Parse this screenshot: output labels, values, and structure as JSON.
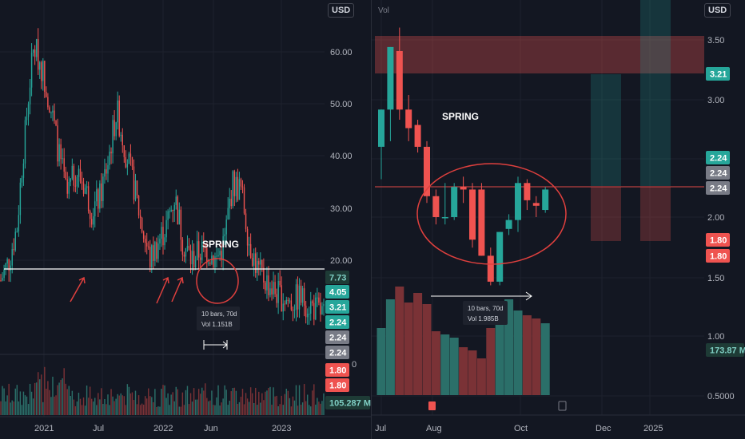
{
  "colors": {
    "background": "#131722",
    "up": "#26a69a",
    "down": "#ef5350",
    "up_vol": "#2b6f69",
    "down_vol": "#7a3236",
    "grid": "#1e222d",
    "annotation": "#e0403e",
    "axis_text": "#b2b5be"
  },
  "left": {
    "currency_label": "USD",
    "annotation_text": "SPRING",
    "measure_bars": "10 bars, 70d",
    "measure_vol": "Vol 1.151B",
    "price_badges": [
      {
        "text": "7.73",
        "kind": "up-dark"
      },
      {
        "text": "4.05",
        "kind": "up"
      },
      {
        "text": "3.21",
        "kind": "up"
      },
      {
        "text": "2.24",
        "kind": "up"
      },
      {
        "text": "2.24",
        "kind": "gray"
      },
      {
        "text": "2.24",
        "kind": "gray"
      },
      {
        "text": "1.80",
        "kind": "down"
      },
      {
        "text": "1.80",
        "kind": "down"
      }
    ],
    "volume_badge": "105.287 M"
  },
  "right": {
    "currency_label": "USD",
    "volume_label": "Vol",
    "annotation_text": "SPRING",
    "measure_bars": "10 bars, 70d",
    "measure_vol": "Vol 1.985B",
    "price_badges": [
      {
        "text": "3.21",
        "kind": "up"
      },
      {
        "text": "2.24",
        "kind": "up"
      },
      {
        "text": "2.24",
        "kind": "gray"
      },
      {
        "text": "2.24",
        "kind": "gray"
      },
      {
        "text": "1.80",
        "kind": "down"
      },
      {
        "text": "1.80",
        "kind": "down"
      }
    ],
    "volume_badge": "173.87 M"
  },
  "chart_data": [
    {
      "type": "candlestick",
      "pane": "left",
      "y_scale": "log",
      "y_ticks": [
        "60.00",
        "50.00",
        "40.00",
        "30.00",
        "20.00"
      ],
      "x_ticks": [
        "2021",
        "Jul",
        "2022",
        "Jun",
        "2023"
      ],
      "ylim": [
        17.5,
        70
      ],
      "horizontal_line": 18.2,
      "close_approx": [
        18,
        20,
        24,
        40,
        62,
        55,
        45,
        35,
        28,
        32,
        30,
        26,
        28,
        34,
        44,
        36,
        30,
        24,
        20,
        22,
        24,
        28,
        22,
        20,
        21,
        21,
        20,
        22,
        30,
        29,
        22,
        19,
        18,
        17,
        16.5,
        16,
        16.5,
        16,
        15.5,
        15
      ]
    },
    {
      "type": "candlestick",
      "pane": "right",
      "y_scale": "log",
      "y_ticks": [
        "3.50",
        "3.00",
        "2.50",
        "2.00",
        "1.50",
        "1.00",
        "0.5000"
      ],
      "x_ticks": [
        "Jul",
        "Aug",
        "Oct",
        "Dec",
        "2025"
      ],
      "ylim": [
        0.46,
        4.4
      ],
      "horizontal_line": 2.24,
      "candles": [
        {
          "o": 2.55,
          "h": 2.9,
          "l": 2.28,
          "c": 2.9
        },
        {
          "o": 2.9,
          "h": 3.6,
          "l": 2.6,
          "c": 3.6
        },
        {
          "o": 3.55,
          "h": 3.85,
          "l": 2.8,
          "c": 2.9
        },
        {
          "o": 2.9,
          "h": 3.05,
          "l": 2.6,
          "c": 2.72
        },
        {
          "o": 2.75,
          "h": 2.8,
          "l": 2.5,
          "c": 2.55
        },
        {
          "o": 2.55,
          "h": 2.6,
          "l": 2.1,
          "c": 2.15
        },
        {
          "o": 2.15,
          "h": 2.2,
          "l": 1.95,
          "c": 2.0
        },
        {
          "o": 2.0,
          "h": 2.25,
          "l": 1.95,
          "c": 2.0
        },
        {
          "o": 2.0,
          "h": 2.25,
          "l": 1.98,
          "c": 2.22
        },
        {
          "o": 2.22,
          "h": 2.3,
          "l": 2.1,
          "c": 2.2
        },
        {
          "o": 2.2,
          "h": 2.25,
          "l": 1.8,
          "c": 1.85
        },
        {
          "o": 2.2,
          "h": 2.25,
          "l": 1.75,
          "c": 1.75
        },
        {
          "o": 1.75,
          "h": 1.8,
          "l": 1.58,
          "c": 1.6
        },
        {
          "o": 1.6,
          "h": 1.9,
          "l": 1.58,
          "c": 1.9
        },
        {
          "o": 1.92,
          "h": 2.02,
          "l": 1.88,
          "c": 1.98
        },
        {
          "o": 1.98,
          "h": 2.3,
          "l": 1.9,
          "c": 2.25
        },
        {
          "o": 2.25,
          "h": 2.28,
          "l": 2.05,
          "c": 2.12
        },
        {
          "o": 2.1,
          "h": 2.15,
          "l": 2.0,
          "c": 2.08
        },
        {
          "o": 2.05,
          "h": 2.22,
          "l": 2.03,
          "c": 2.2
        }
      ],
      "volume": [
        0.42,
        0.6,
        0.68,
        0.58,
        0.64,
        0.57,
        0.4,
        0.38,
        0.36,
        0.3,
        0.28,
        0.23,
        0.42,
        0.55,
        0.6,
        0.53,
        0.5,
        0.48,
        0.45
      ]
    }
  ]
}
